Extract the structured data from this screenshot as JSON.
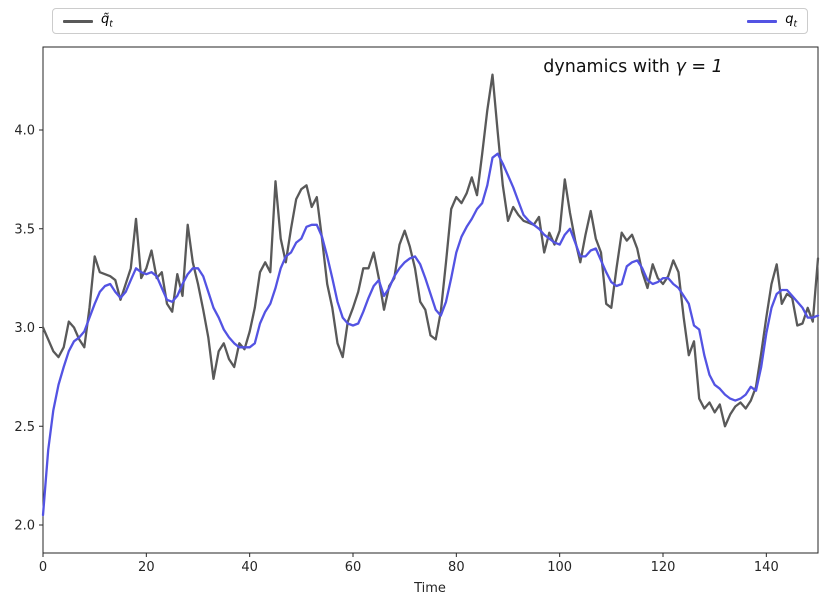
{
  "figure": {
    "background": "#ffffff",
    "axis_color": "#262626"
  },
  "annotation": {
    "prefix": "dynamics with ",
    "math": "γ = 1"
  },
  "legend": {
    "entries": [
      {
        "name": "q-tilde-t",
        "label_main": "q̃",
        "label_sub": "t",
        "color": "#595959"
      },
      {
        "name": "q-t",
        "label_main": "q",
        "label_sub": "t",
        "color": "#5353e3"
      }
    ]
  },
  "chart_data": {
    "type": "line",
    "title": "dynamics with γ = 1",
    "xlabel": "Time",
    "ylabel": "",
    "x_ticks": [
      0,
      20,
      40,
      60,
      80,
      100,
      120,
      140
    ],
    "y_ticks": [
      2.0,
      2.5,
      3.0,
      3.5,
      4.0
    ],
    "xlim": [
      0,
      150
    ],
    "ylim": [
      1.86,
      4.42
    ],
    "grid": false,
    "legend_position": "expanded box above axes, first entry left, second entry right",
    "x_start": 0,
    "x_step": 1,
    "series": [
      {
        "name": "q̃_t",
        "color": "#595959",
        "linewidth": 2.3,
        "values": [
          3.0,
          2.94,
          2.88,
          2.85,
          2.9,
          3.03,
          3.0,
          2.94,
          2.9,
          3.1,
          3.36,
          3.28,
          3.27,
          3.26,
          3.24,
          3.14,
          3.22,
          3.3,
          3.55,
          3.25,
          3.3,
          3.39,
          3.25,
          3.28,
          3.12,
          3.08,
          3.27,
          3.16,
          3.52,
          3.33,
          3.22,
          3.09,
          2.95,
          2.74,
          2.88,
          2.92,
          2.84,
          2.8,
          2.92,
          2.89,
          2.98,
          3.1,
          3.28,
          3.33,
          3.28,
          3.74,
          3.45,
          3.33,
          3.5,
          3.65,
          3.7,
          3.72,
          3.61,
          3.66,
          3.45,
          3.22,
          3.1,
          2.92,
          2.85,
          3.03,
          3.1,
          3.18,
          3.3,
          3.3,
          3.38,
          3.25,
          3.09,
          3.21,
          3.25,
          3.42,
          3.49,
          3.41,
          3.3,
          3.13,
          3.09,
          2.96,
          2.94,
          3.08,
          3.33,
          3.6,
          3.66,
          3.63,
          3.68,
          3.76,
          3.67,
          3.88,
          4.1,
          4.28,
          3.99,
          3.72,
          3.54,
          3.61,
          3.57,
          3.54,
          3.53,
          3.52,
          3.56,
          3.38,
          3.48,
          3.42,
          3.49,
          3.75,
          3.58,
          3.44,
          3.33,
          3.47,
          3.59,
          3.45,
          3.38,
          3.12,
          3.1,
          3.3,
          3.48,
          3.44,
          3.47,
          3.4,
          3.28,
          3.2,
          3.32,
          3.25,
          3.22,
          3.26,
          3.34,
          3.28,
          3.05,
          2.86,
          2.93,
          2.64,
          2.59,
          2.62,
          2.57,
          2.61,
          2.5,
          2.56,
          2.6,
          2.62,
          2.59,
          2.63,
          2.7,
          2.87,
          3.05,
          3.22,
          3.32,
          3.12,
          3.17,
          3.15,
          3.01,
          3.02,
          3.1,
          3.03,
          3.35
        ]
      },
      {
        "name": "q_t",
        "color": "#5353e3",
        "linewidth": 2.3,
        "values": [
          2.05,
          2.38,
          2.58,
          2.71,
          2.8,
          2.88,
          2.93,
          2.95,
          2.98,
          3.05,
          3.12,
          3.18,
          3.21,
          3.22,
          3.18,
          3.15,
          3.18,
          3.24,
          3.3,
          3.28,
          3.27,
          3.28,
          3.26,
          3.2,
          3.14,
          3.13,
          3.16,
          3.22,
          3.27,
          3.3,
          3.3,
          3.26,
          3.18,
          3.1,
          3.05,
          2.99,
          2.95,
          2.92,
          2.9,
          2.9,
          2.9,
          2.92,
          3.02,
          3.08,
          3.12,
          3.2,
          3.3,
          3.36,
          3.38,
          3.43,
          3.45,
          3.51,
          3.52,
          3.52,
          3.46,
          3.36,
          3.25,
          3.13,
          3.05,
          3.02,
          3.01,
          3.02,
          3.08,
          3.15,
          3.21,
          3.24,
          3.16,
          3.2,
          3.26,
          3.3,
          3.33,
          3.35,
          3.36,
          3.32,
          3.25,
          3.17,
          3.09,
          3.06,
          3.13,
          3.25,
          3.38,
          3.46,
          3.51,
          3.55,
          3.6,
          3.63,
          3.72,
          3.86,
          3.88,
          3.83,
          3.77,
          3.71,
          3.64,
          3.57,
          3.54,
          3.52,
          3.5,
          3.47,
          3.45,
          3.43,
          3.42,
          3.47,
          3.5,
          3.43,
          3.36,
          3.36,
          3.39,
          3.4,
          3.34,
          3.28,
          3.23,
          3.21,
          3.22,
          3.31,
          3.33,
          3.34,
          3.3,
          3.24,
          3.22,
          3.23,
          3.25,
          3.25,
          3.22,
          3.2,
          3.16,
          3.12,
          3.01,
          2.99,
          2.86,
          2.76,
          2.71,
          2.69,
          2.66,
          2.64,
          2.63,
          2.64,
          2.66,
          2.7,
          2.68,
          2.8,
          2.97,
          3.1,
          3.17,
          3.19,
          3.19,
          3.16,
          3.13,
          3.1,
          3.05,
          3.05,
          3.06
        ]
      }
    ]
  }
}
